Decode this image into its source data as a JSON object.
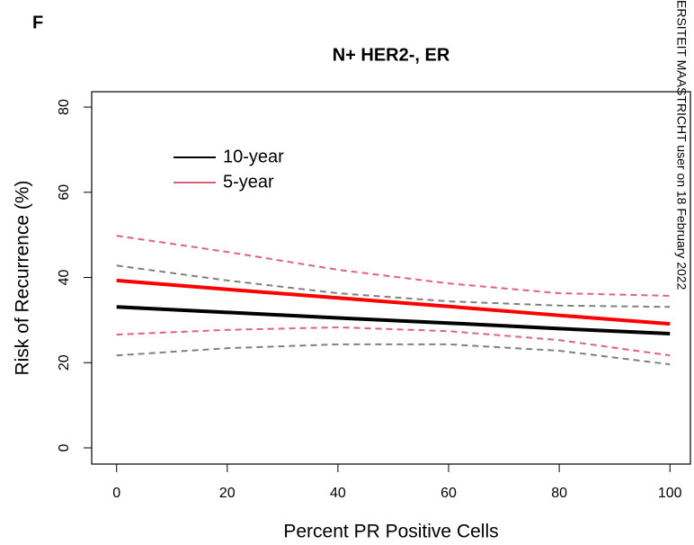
{
  "panel_label": "F",
  "watermark": "ERSITEIT MAASTRICHT user on 18 February 2022",
  "chart_data": {
    "type": "line",
    "title": "N+ HER2-, ER",
    "x_label": "Percent PR Positive Cells",
    "y_label": "Risk of Recurrence (%)",
    "x": [
      0,
      20,
      40,
      60,
      80,
      100
    ],
    "series": [
      {
        "name": "10-year",
        "color": "#000000",
        "legend_color": "#000000",
        "ci_color": "#808080",
        "values": [
          33.1,
          31.8,
          30.5,
          29.3,
          28.0,
          26.8
        ],
        "lower": [
          21.7,
          23.4,
          24.3,
          24.3,
          22.8,
          19.6
        ],
        "upper": [
          42.8,
          39.3,
          36.3,
          34.4,
          33.4,
          33.1
        ]
      },
      {
        "name": "5-year",
        "color": "#ff0000",
        "legend_color": "#df5f7f",
        "ci_color": "#df5f8f",
        "values": [
          39.3,
          37.2,
          35.2,
          33.2,
          31.1,
          29.1
        ],
        "lower": [
          26.6,
          27.7,
          28.3,
          27.4,
          25.3,
          21.7
        ],
        "upper": [
          49.8,
          46.0,
          41.8,
          38.6,
          36.3,
          35.7
        ]
      }
    ],
    "xlim": [
      -4.5,
      103.7
    ],
    "ylim": [
      -3.8,
      83.6
    ],
    "xticks": [
      0,
      20,
      40,
      60,
      80,
      100
    ],
    "yticks": [
      0,
      20,
      40,
      60,
      80
    ],
    "legend": "upper left",
    "grid": false
  }
}
